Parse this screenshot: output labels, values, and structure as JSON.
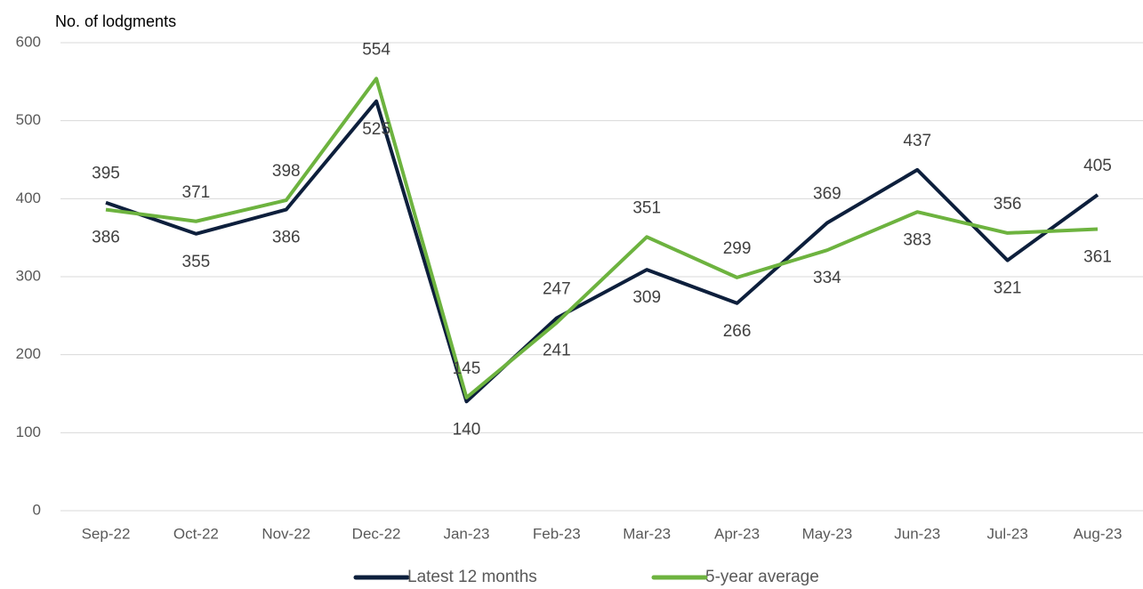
{
  "chart_data": {
    "type": "line",
    "title": "No. of lodgments",
    "categories": [
      "Sep-22",
      "Oct-22",
      "Nov-22",
      "Dec-22",
      "Jan-23",
      "Feb-23",
      "Mar-23",
      "Apr-23",
      "May-23",
      "Jun-23",
      "Jul-23",
      "Aug-23"
    ],
    "series": [
      {
        "name": "Latest 12 months",
        "color": "#0d1f3c",
        "values": [
          395,
          355,
          386,
          525,
          140,
          247,
          309,
          266,
          369,
          437,
          321,
          405
        ]
      },
      {
        "name": "5-year average",
        "color": "#6db33f",
        "values": [
          386,
          371,
          398,
          554,
          145,
          241,
          351,
          299,
          334,
          383,
          356,
          361
        ]
      }
    ],
    "ylim": [
      0,
      600
    ],
    "yticks": [
      0,
      100,
      200,
      300,
      400,
      500,
      600
    ],
    "grid": true,
    "legend": "bottom"
  }
}
